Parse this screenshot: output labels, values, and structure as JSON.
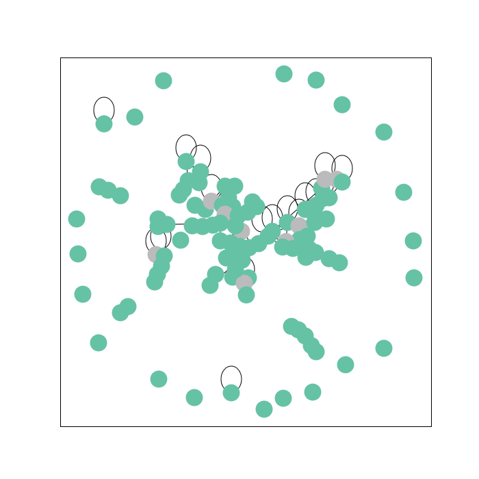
{
  "colors": {
    "background": "#ffffff",
    "frame": "#000000",
    "edge": "#000000",
    "node_teal": "#66c2a5",
    "node_gray": "#bbbbbb"
  },
  "graph": {
    "node_kinds": [
      "teal",
      "gray"
    ],
    "has_self_loops": true
  }
}
